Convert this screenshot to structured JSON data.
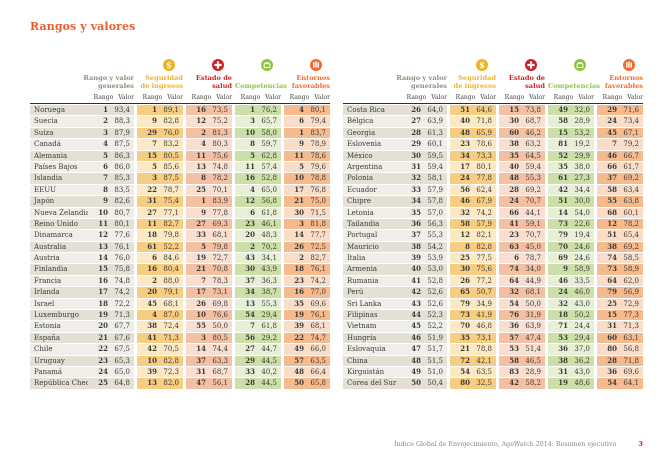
{
  "page": {
    "title": "Rangos y valores",
    "footer_text": "Índice Global de Envejecimiento, AgeWatch 2014: Resumen ejecutivo",
    "page_number": "3"
  },
  "colors": {
    "title": "#f05b2a",
    "income": "#f0b225",
    "health": "#cc2027",
    "skills": "#8bc53f",
    "environment": "#f26a2c",
    "general_label": "#918e7e"
  },
  "columns": [
    {
      "key": "general",
      "line1": "Rango y valor",
      "line2": "generales"
    },
    {
      "key": "income-security",
      "line1": "Seguridad",
      "line2": "de ingresos"
    },
    {
      "key": "health-status",
      "line1": "Estado de",
      "line2": "salud"
    },
    {
      "key": "capability",
      "line1": "Competencias",
      "line2": ""
    },
    {
      "key": "enabling-environment",
      "line1": "Entornos",
      "line2": "favorables"
    }
  ],
  "subheader": {
    "rank": "Rango",
    "value": "Valor"
  },
  "tables": [
    {
      "rows": [
        {
          "c": "Noruega",
          "v": [
            "1",
            "93,4",
            "1",
            "89,1",
            "16",
            "73,5",
            "1",
            "76,2",
            "4",
            "80,1"
          ]
        },
        {
          "c": "Suecia",
          "v": [
            "2",
            "88,3",
            "9",
            "82,8",
            "12",
            "75,2",
            "3",
            "65,7",
            "6",
            "79,4"
          ]
        },
        {
          "c": "Suiza",
          "v": [
            "3",
            "87,9",
            "29",
            "76,0",
            "2",
            "81,3",
            "10",
            "58,0",
            "1",
            "83,7"
          ]
        },
        {
          "c": "Canadá",
          "v": [
            "4",
            "87,5",
            "7",
            "83,2",
            "4",
            "80,3",
            "8",
            "59,7",
            "9",
            "78,9"
          ]
        },
        {
          "c": "Alemania",
          "v": [
            "5",
            "86,3",
            "15",
            "80,5",
            "11",
            "75,6",
            "5",
            "62,8",
            "11",
            "78,6"
          ]
        },
        {
          "c": "Países Bajos",
          "v": [
            "6",
            "86,0",
            "5",
            "85,6",
            "13",
            "74,8",
            "11",
            "57,4",
            "5",
            "79,6"
          ]
        },
        {
          "c": "Islandia",
          "v": [
            "7",
            "85,3",
            "3",
            "87,5",
            "8",
            "78,2",
            "16",
            "52,8",
            "10",
            "78,8"
          ]
        },
        {
          "c": "EEUU",
          "v": [
            "8",
            "83,5",
            "22",
            "78,7",
            "25",
            "70,1",
            "4",
            "65,0",
            "17",
            "76,8"
          ]
        },
        {
          "c": "Japón",
          "v": [
            "9",
            "82,6",
            "31",
            "75,4",
            "1",
            "83,9",
            "12",
            "56,8",
            "21",
            "75,0"
          ]
        },
        {
          "c": "Nueva Zelandia",
          "v": [
            "10",
            "80,7",
            "27",
            "77,1",
            "9",
            "77,8",
            "6",
            "61,8",
            "30",
            "71,5"
          ]
        },
        {
          "c": "Reino Unido",
          "v": [
            "11",
            "80,1",
            "11",
            "82,7",
            "27",
            "69,3",
            "23",
            "46,1",
            "3",
            "81,8"
          ]
        },
        {
          "c": "Dinamarca",
          "v": [
            "12",
            "77,6",
            "18",
            "79,8",
            "33",
            "68,1",
            "20",
            "48,3",
            "14",
            "77,7"
          ]
        },
        {
          "c": "Australia",
          "v": [
            "13",
            "76,1",
            "61",
            "52,2",
            "5",
            "79,8",
            "2",
            "70,2",
            "26",
            "72,5"
          ]
        },
        {
          "c": "Austria",
          "v": [
            "14",
            "76,0",
            "6",
            "84,6",
            "19",
            "72,7",
            "43",
            "34,1",
            "2",
            "82,7"
          ]
        },
        {
          "c": "Finlandia",
          "v": [
            "15",
            "75,8",
            "16",
            "80,4",
            "21",
            "70,8",
            "30",
            "43,9",
            "18",
            "76,1"
          ]
        },
        {
          "c": "Francia",
          "v": [
            "16",
            "74,8",
            "2",
            "88,0",
            "7",
            "78,3",
            "37",
            "36,3",
            "23",
            "74,2"
          ]
        },
        {
          "c": "Irlanda",
          "v": [
            "17",
            "74,2",
            "20",
            "79,1",
            "17",
            "73,1",
            "34",
            "38,7",
            "16",
            "77,0"
          ]
        },
        {
          "c": "Israel",
          "v": [
            "18",
            "72,2",
            "45",
            "68,1",
            "26",
            "69,8",
            "13",
            "55,3",
            "35",
            "69,6"
          ]
        },
        {
          "c": "Luxemburgo",
          "v": [
            "19",
            "71,3",
            "4",
            "87,0",
            "10",
            "76,6",
            "54",
            "29,4",
            "19",
            "76,1"
          ]
        },
        {
          "c": "Estonia",
          "v": [
            "20",
            "67,7",
            "38",
            "72,4",
            "55",
            "50,0",
            "7",
            "61,8",
            "39",
            "68,1"
          ]
        },
        {
          "c": "España",
          "v": [
            "21",
            "67,6",
            "41",
            "71,3",
            "3",
            "80,5",
            "56",
            "29,2",
            "22",
            "74,7"
          ]
        },
        {
          "c": "Chile",
          "v": [
            "22",
            "67,5",
            "42",
            "70,5",
            "14",
            "74,4",
            "27",
            "44,7",
            "49",
            "66,0"
          ]
        },
        {
          "c": "Uruguay",
          "v": [
            "23",
            "65,3",
            "10",
            "82,8",
            "37",
            "63,3",
            "29",
            "44,5",
            "57",
            "63,5"
          ]
        },
        {
          "c": "Panamá",
          "v": [
            "24",
            "65,0",
            "39",
            "72,3",
            "31",
            "68,7",
            "33",
            "40,2",
            "48",
            "66,4"
          ]
        },
        {
          "c": "República Checa",
          "v": [
            "25",
            "64,8",
            "13",
            "82,0",
            "47",
            "56,1",
            "28",
            "44,5",
            "50",
            "65,8"
          ]
        }
      ]
    },
    {
      "rows": [
        {
          "c": "Costa Rica",
          "v": [
            "26",
            "64,0",
            "51",
            "64,6",
            "15",
            "73,8",
            "49",
            "32,0",
            "29",
            "71,6"
          ]
        },
        {
          "c": "Bélgica",
          "v": [
            "27",
            "63,9",
            "40",
            "71,8",
            "30",
            "68,7",
            "58",
            "28,9",
            "24",
            "73,4"
          ]
        },
        {
          "c": "Georgia",
          "v": [
            "28",
            "61,3",
            "48",
            "65,9",
            "60",
            "46,2",
            "15",
            "53,2",
            "45",
            "67,1"
          ]
        },
        {
          "c": "Eslovenia",
          "v": [
            "29",
            "60,1",
            "23",
            "78,6",
            "38",
            "63,2",
            "81",
            "19,2",
            "7",
            "79,2"
          ]
        },
        {
          "c": "México",
          "v": [
            "30",
            "59,5",
            "34",
            "73,3",
            "35",
            "64,5",
            "52",
            "29,9",
            "46",
            "66,7"
          ]
        },
        {
          "c": "Argentina",
          "v": [
            "31",
            "59,4",
            "17",
            "80,1",
            "40",
            "59,4",
            "35",
            "38,0",
            "66",
            "61,7"
          ]
        },
        {
          "c": "Polonia",
          "v": [
            "32",
            "58,1",
            "24",
            "77,8",
            "48",
            "55,3",
            "61",
            "27,3",
            "37",
            "69,2"
          ]
        },
        {
          "c": "Ecuador",
          "v": [
            "33",
            "57,9",
            "56",
            "62,4",
            "28",
            "69,2",
            "42",
            "34,4",
            "58",
            "63,4"
          ]
        },
        {
          "c": "Chipre",
          "v": [
            "34",
            "57,8",
            "46",
            "67,9",
            "24",
            "70,7",
            "51",
            "30,0",
            "55",
            "63,8"
          ]
        },
        {
          "c": "Letonia",
          "v": [
            "35",
            "57,0",
            "32",
            "74,2",
            "66",
            "44,1",
            "14",
            "54,0",
            "68",
            "60,1"
          ]
        },
        {
          "c": "Tailandia",
          "v": [
            "36",
            "56,3",
            "58",
            "57,9",
            "41",
            "59,1",
            "73",
            "22,6",
            "12",
            "78,2"
          ]
        },
        {
          "c": "Portugal",
          "v": [
            "37",
            "55,3",
            "12",
            "82,1",
            "23",
            "70,7",
            "79",
            "19,4",
            "51",
            "65,4"
          ]
        },
        {
          "c": "Mauricio",
          "v": [
            "38",
            "54,2",
            "8",
            "82,8",
            "63",
            "45,0",
            "70",
            "24,6",
            "38",
            "69,2"
          ]
        },
        {
          "c": "Italia",
          "v": [
            "39",
            "53,9",
            "25",
            "77,5",
            "6",
            "78,7",
            "69",
            "24,6",
            "74",
            "58,5"
          ]
        },
        {
          "c": "Armenia",
          "v": [
            "40",
            "53,0",
            "30",
            "75,6",
            "74",
            "34,0",
            "9",
            "58,9",
            "73",
            "58,9"
          ]
        },
        {
          "c": "Rumania",
          "v": [
            "41",
            "52,8",
            "26",
            "77,2",
            "64",
            "44,9",
            "46",
            "33,5",
            "64",
            "62,0"
          ]
        },
        {
          "c": "Perú",
          "v": [
            "42",
            "52,6",
            "65",
            "50,7",
            "32",
            "68,1",
            "24",
            "46,0",
            "79",
            "56,9"
          ]
        },
        {
          "c": "Sri Lanka",
          "v": [
            "43",
            "52,6",
            "79",
            "34,9",
            "54",
            "50,0",
            "32",
            "43,0",
            "25",
            "72,9"
          ]
        },
        {
          "c": "Filipinas",
          "v": [
            "44",
            "52,3",
            "73",
            "41,9",
            "76",
            "31,9",
            "18",
            "50,2",
            "15",
            "77,3"
          ]
        },
        {
          "c": "Vietnam",
          "v": [
            "45",
            "52,2",
            "70",
            "46,8",
            "36",
            "63,9",
            "71",
            "24,4",
            "31",
            "71,3"
          ]
        },
        {
          "c": "Hungría",
          "v": [
            "46",
            "51,9",
            "35",
            "73,1",
            "57",
            "47,4",
            "53",
            "29,4",
            "60",
            "63,1"
          ]
        },
        {
          "c": "Eslovaquia",
          "v": [
            "47",
            "51,7",
            "21",
            "78,8",
            "53",
            "51,4",
            "36",
            "37,0",
            "80",
            "56,8"
          ]
        },
        {
          "c": "China",
          "v": [
            "48",
            "51,5",
            "72",
            "42,1",
            "58",
            "46,5",
            "38",
            "36,2",
            "28",
            "71,8"
          ]
        },
        {
          "c": "Kirguistán",
          "v": [
            "49",
            "51,0",
            "54",
            "63,5",
            "83",
            "28,9",
            "31",
            "43,0",
            "36",
            "69,6"
          ]
        },
        {
          "c": "Corea del Sur",
          "v": [
            "50",
            "50,4",
            "80",
            "32,5",
            "42",
            "58,2",
            "19",
            "48,6",
            "54",
            "64,1"
          ]
        }
      ]
    }
  ]
}
